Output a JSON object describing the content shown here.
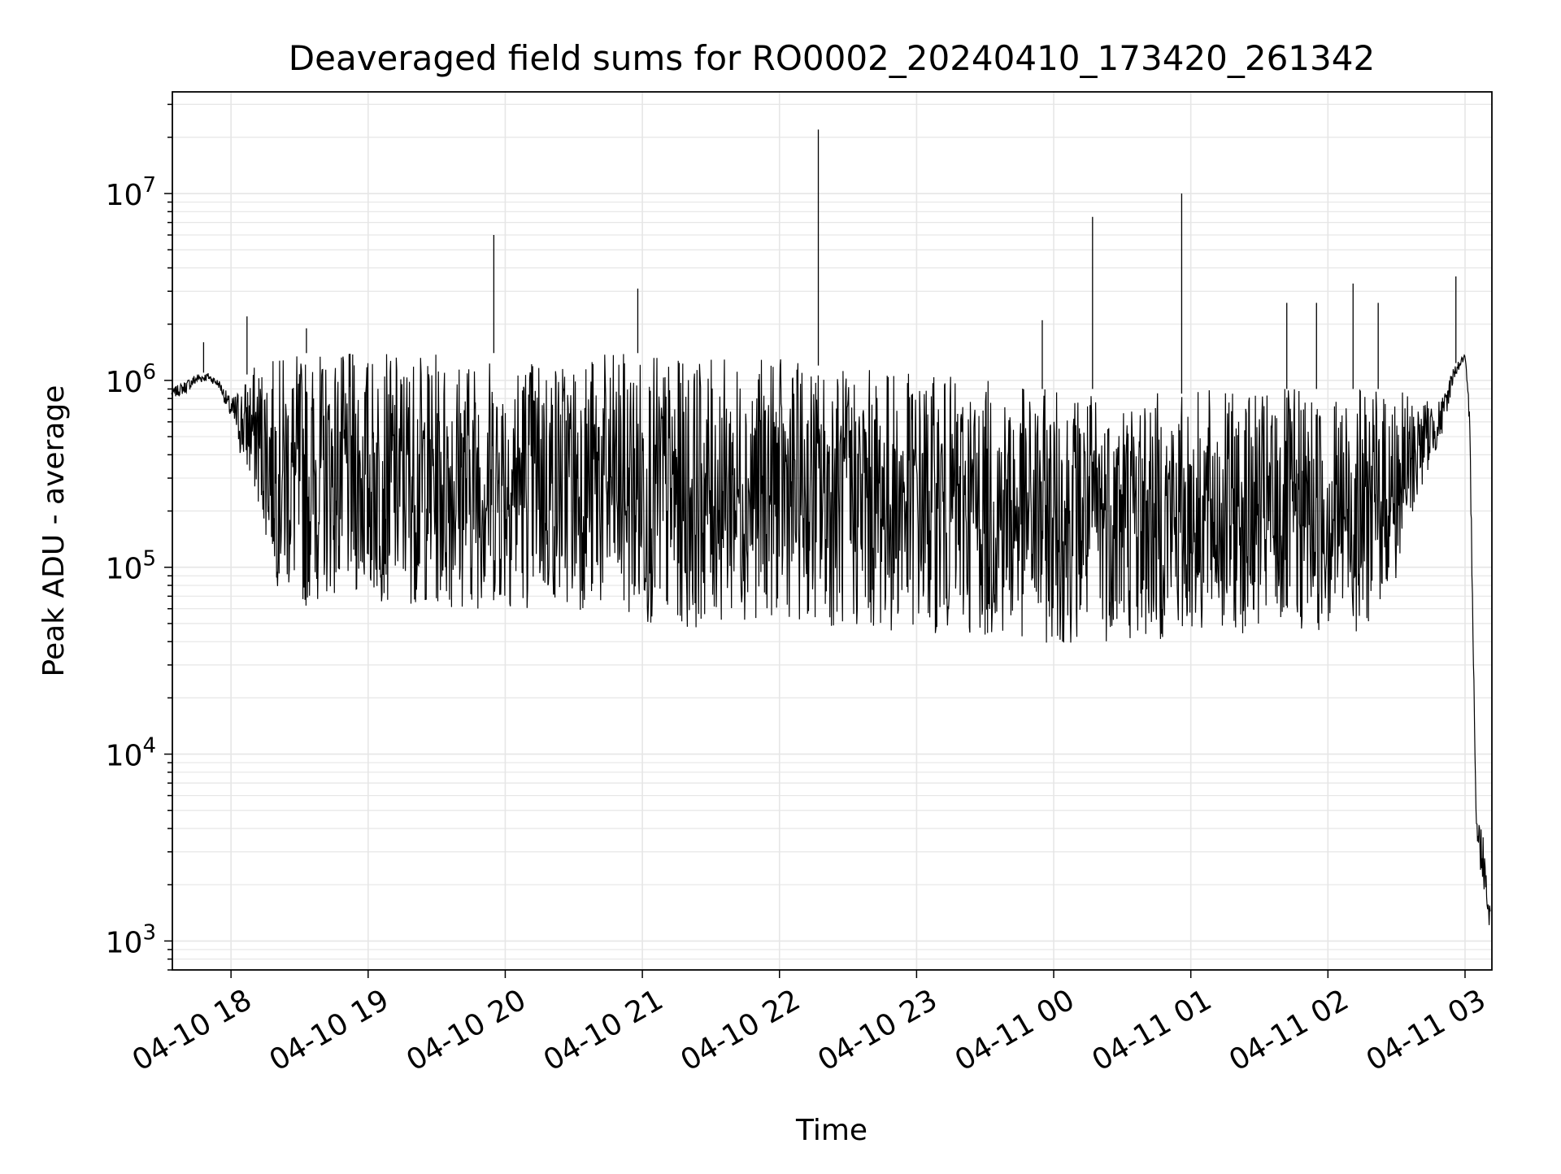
{
  "chart_data": {
    "type": "line",
    "title": "Deaveraged field sums for RO0002_20240410_173420_261342",
    "xlabel": "Time",
    "ylabel": "Peak ADU - average",
    "yscale": "log",
    "ylim": [
      700,
      35000000
    ],
    "xlim": [
      "2024-04-10 17:34:20",
      "2024-04-11 03:11:45"
    ],
    "grid": true,
    "legend": "none",
    "line_color": "#000000",
    "grid_color": "#e6e6e6",
    "x_ticks": [
      {
        "value": "2024-04-10 18:00",
        "label": "04-10 18"
      },
      {
        "value": "2024-04-10 19:00",
        "label": "04-10 19"
      },
      {
        "value": "2024-04-10 20:00",
        "label": "04-10 20"
      },
      {
        "value": "2024-04-10 21:00",
        "label": "04-10 21"
      },
      {
        "value": "2024-04-10 22:00",
        "label": "04-10 22"
      },
      {
        "value": "2024-04-10 23:00",
        "label": "04-10 23"
      },
      {
        "value": "2024-04-11 00:00",
        "label": "04-11 00"
      },
      {
        "value": "2024-04-11 01:00",
        "label": "04-11 01"
      },
      {
        "value": "2024-04-11 02:00",
        "label": "04-11 02"
      },
      {
        "value": "2024-04-11 03:00",
        "label": "04-11 03"
      }
    ],
    "y_ticks": [
      {
        "value": 1000,
        "base": "10",
        "exp": "3"
      },
      {
        "value": 10000,
        "base": "10",
        "exp": "4"
      },
      {
        "value": 100000,
        "base": "10",
        "exp": "5"
      },
      {
        "value": 1000000,
        "base": "10",
        "exp": "6"
      },
      {
        "value": 10000000,
        "base": "10",
        "exp": "7"
      }
    ],
    "series": [
      {
        "x": [
          "2024-04-10 17:34",
          "2024-04-10 17:40",
          "2024-04-10 17:45",
          "2024-04-10 17:50",
          "2024-04-10 17:55",
          "2024-04-10 18:00",
          "2024-04-10 18:05",
          "2024-04-10 18:10",
          "2024-04-10 18:15",
          "2024-04-10 18:20",
          "2024-04-10 18:25",
          "2024-04-10 18:30",
          "2024-04-10 18:35",
          "2024-04-10 18:40",
          "2024-04-10 18:50",
          "2024-04-10 19:00",
          "2024-04-10 19:15",
          "2024-04-10 19:30",
          "2024-04-10 19:45",
          "2024-04-10 19:55",
          "2024-04-10 20:00",
          "2024-04-10 20:30",
          "2024-04-10 21:00",
          "2024-04-10 21:15",
          "2024-04-10 21:30",
          "2024-04-10 22:00",
          "2024-04-10 22:17",
          "2024-04-10 22:30",
          "2024-04-10 23:00",
          "2024-04-10 23:30",
          "2024-04-10 23:52",
          "2024-04-11 00:00",
          "2024-04-11 00:17",
          "2024-04-11 00:30",
          "2024-04-11 00:56",
          "2024-04-11 01:00",
          "2024-04-11 01:30",
          "2024-04-11 01:40",
          "2024-04-11 02:00",
          "2024-04-11 02:15",
          "2024-04-11 02:30",
          "2024-04-11 02:40",
          "2024-04-11 02:50",
          "2024-04-11 02:55",
          "2024-04-11 03:00",
          "2024-04-11 03:02",
          "2024-04-11 03:05",
          "2024-04-11 03:08",
          "2024-04-11 03:11"
        ],
        "y": [
          800000,
          850000,
          950000,
          1000000,
          900000,
          600000,
          350000,
          250000,
          150000,
          80000,
          70000,
          60000,
          60000,
          70000,
          70000,
          65000,
          65000,
          60000,
          60000,
          60000,
          60000,
          60000,
          50000,
          45000,
          50000,
          55000,
          50000,
          45000,
          45000,
          42000,
          40000,
          38000,
          40000,
          40000,
          40000,
          42000,
          45000,
          42000,
          45000,
          45000,
          80000,
          250000,
          500000,
          1000000,
          1300000,
          500000,
          3000,
          2000,
          1100
        ],
        "y_high": [
          900000,
          1000000,
          1100000,
          1100000,
          1000000,
          800000,
          1000000,
          1200000,
          1300000,
          1300000,
          1400000,
          1400000,
          1400000,
          1400000,
          1400000,
          1400000,
          1400000,
          1400000,
          1400000,
          1400000,
          1400000,
          1400000,
          1400000,
          1300000,
          1300000,
          1300000,
          1200000,
          1200000,
          1100000,
          1000000,
          900000,
          900000,
          900000,
          900000,
          850000,
          900000,
          850000,
          900000,
          900000,
          900000,
          900000,
          800000,
          800000,
          1200000,
          1400000,
          700000,
          5000,
          4000,
          1500
        ],
        "spikes": [
          {
            "x": "2024-04-10 17:48",
            "y": 1600000
          },
          {
            "x": "2024-04-10 18:07",
            "y": 2200000
          },
          {
            "x": "2024-04-10 18:33",
            "y": 1900000
          },
          {
            "x": "2024-04-10 19:55",
            "y": 6000000
          },
          {
            "x": "2024-04-10 20:58",
            "y": 3100000
          },
          {
            "x": "2024-04-10 22:17",
            "y": 22000000
          },
          {
            "x": "2024-04-10 23:55",
            "y": 2100000
          },
          {
            "x": "2024-04-11 00:17",
            "y": 7500000
          },
          {
            "x": "2024-04-11 00:56",
            "y": 10000000
          },
          {
            "x": "2024-04-11 01:42",
            "y": 2600000
          },
          {
            "x": "2024-04-11 01:55",
            "y": 2600000
          },
          {
            "x": "2024-04-11 02:11",
            "y": 3300000
          },
          {
            "x": "2024-04-11 02:22",
            "y": 2600000
          },
          {
            "x": "2024-04-11 02:56",
            "y": 3600000
          }
        ]
      }
    ]
  }
}
